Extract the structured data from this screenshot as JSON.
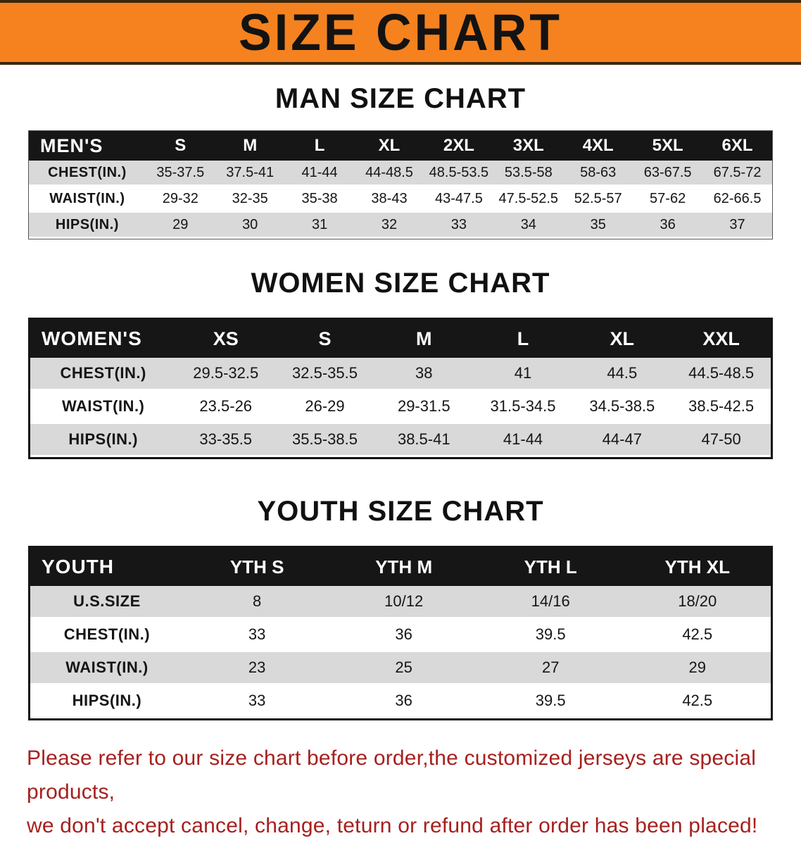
{
  "banner": {
    "title": "SIZE CHART"
  },
  "colors": {
    "banner_bg": "#f5821f",
    "disclaimer_red": "#a6201e"
  },
  "sections": [
    {
      "heading": "MAN SIZE CHART",
      "table": {
        "header": [
          "MEN'S",
          "S",
          "M",
          "L",
          "XL",
          "2XL",
          "3XL",
          "4XL",
          "5XL",
          "6XL"
        ],
        "rows": [
          {
            "label": "CHEST(IN.)",
            "values": [
              "35-37.5",
              "37.5-41",
              "41-44",
              "44-48.5",
              "48.5-53.5",
              "53.5-58",
              "58-63",
              "63-67.5",
              "67.5-72"
            ]
          },
          {
            "label": "WAIST(IN.)",
            "values": [
              "29-32",
              "32-35",
              "35-38",
              "38-43",
              "43-47.5",
              "47.5-52.5",
              "52.5-57",
              "57-62",
              "62-66.5"
            ]
          },
          {
            "label": "HIPS(IN.)",
            "values": [
              "29",
              "30",
              "31",
              "32",
              "33",
              "34",
              "35",
              "36",
              "37"
            ]
          }
        ]
      }
    },
    {
      "heading": "WOMEN SIZE CHART",
      "table": {
        "header": [
          "WOMEN'S",
          "XS",
          "S",
          "M",
          "L",
          "XL",
          "XXL"
        ],
        "rows": [
          {
            "label": "CHEST(IN.)",
            "values": [
              "29.5-32.5",
              "32.5-35.5",
              "38",
              "41",
              "44.5",
              "44.5-48.5"
            ]
          },
          {
            "label": "WAIST(IN.)",
            "values": [
              "23.5-26",
              "26-29",
              "29-31.5",
              "31.5-34.5",
              "34.5-38.5",
              "38.5-42.5"
            ]
          },
          {
            "label": "HIPS(IN.)",
            "values": [
              "33-35.5",
              "35.5-38.5",
              "38.5-41",
              "41-44",
              "44-47",
              "47-50"
            ]
          }
        ]
      }
    },
    {
      "heading": "YOUTH SIZE CHART",
      "table": {
        "header": [
          "YOUTH",
          "YTH S",
          "YTH M",
          "YTH L",
          "YTH XL"
        ],
        "rows": [
          {
            "label": "U.S.SIZE",
            "values": [
              "8",
              "10/12",
              "14/16",
              "18/20"
            ]
          },
          {
            "label": "CHEST(IN.)",
            "values": [
              "33",
              "36",
              "39.5",
              "42.5"
            ]
          },
          {
            "label": "WAIST(IN.)",
            "values": [
              "23",
              "25",
              "27",
              "29"
            ]
          },
          {
            "label": "HIPS(IN.)",
            "values": [
              "33",
              "36",
              "39.5",
              "42.5"
            ]
          }
        ]
      }
    }
  ],
  "disclaimer": {
    "line1": "Please refer to our size chart before order,the customized jerseys are special products,",
    "line2": "we don't accept cancel, change, teturn or refund after order has been placed!"
  }
}
